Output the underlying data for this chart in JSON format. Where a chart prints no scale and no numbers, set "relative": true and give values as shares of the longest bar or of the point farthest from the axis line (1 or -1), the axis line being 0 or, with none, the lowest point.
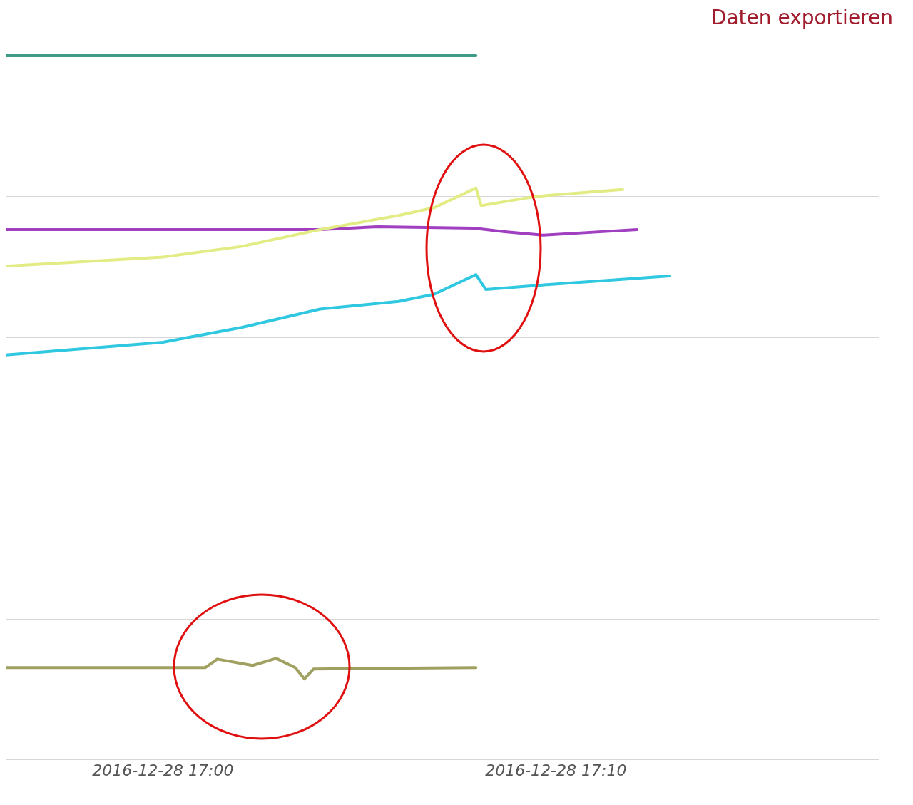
{
  "chart_data": {
    "type": "line",
    "relative": true,
    "annotations": [
      "Daten exportieren"
    ],
    "xlim": [
      "2016-12-28T16:56",
      "2016-12-28T17:18:13"
    ],
    "xticks": [
      {
        "value": "2016-12-28T17:00",
        "label": "2016-12-28 17:00"
      },
      {
        "value": "2016-12-28T17:10",
        "label": "2016-12-28 17:10"
      }
    ],
    "grid": true,
    "legend": false,
    "marker": "none",
    "line_style": "solid",
    "series": [
      {
        "color": "#3f9a88",
        "x": [
          "2016-12-28T16:56",
          "2016-12-28T17:07:58"
        ],
        "values": [
          1,
          1
        ]
      },
      {
        "color": "#e3ec84",
        "x": [
          "2016-12-28T16:56",
          "2016-12-28T17:00",
          "2016-12-28T17:02",
          "2016-12-28T17:04",
          "2016-12-28T17:06",
          "2016-12-28T17:06:54",
          "2016-12-28T17:07:58",
          "2016-12-28T17:08:06",
          "2016-12-28T17:09:29",
          "2016-12-28T17:11:42"
        ],
        "values": [
          0.701,
          0.714,
          0.729,
          0.753,
          0.773,
          0.784,
          0.812,
          0.787,
          0.8,
          0.81
        ]
      },
      {
        "color": "#a040c0",
        "x": [
          "2016-12-28T16:56",
          "2016-12-28T17:04",
          "2016-12-28T17:05:28",
          "2016-12-28T17:07:55",
          "2016-12-28T17:08:42",
          "2016-12-28T17:09:40",
          "2016-12-28T17:10:34",
          "2016-12-28T17:12:04"
        ],
        "values": [
          0.753,
          0.753,
          0.757,
          0.755,
          0.75,
          0.745,
          0.748,
          0.753
        ]
      },
      {
        "color": "#30c8e0",
        "x": [
          "2016-12-28T16:56",
          "2016-12-28T17:00",
          "2016-12-28T17:02",
          "2016-12-28T17:04",
          "2016-12-28T17:06",
          "2016-12-28T17:06:54",
          "2016-12-28T17:07:58",
          "2016-12-28T17:08:13",
          "2016-12-28T17:09:50",
          "2016-12-28T17:12:54"
        ],
        "values": [
          0.575,
          0.593,
          0.614,
          0.64,
          0.651,
          0.661,
          0.689,
          0.668,
          0.675,
          0.687
        ]
      },
      {
        "color": "#a0a060",
        "x": [
          "2016-12-28T16:56",
          "2016-12-28T17:01:05",
          "2016-12-28T17:01:23",
          "2016-12-28T17:02:17",
          "2016-12-28T17:02:53",
          "2016-12-28T17:03:22",
          "2016-12-28T17:03:36",
          "2016-12-28T17:03:50",
          "2016-12-28T17:07:58"
        ],
        "values": [
          0.131,
          0.131,
          0.143,
          0.134,
          0.144,
          0.131,
          0.115,
          0.129,
          0.131
        ]
      }
    ]
  }
}
